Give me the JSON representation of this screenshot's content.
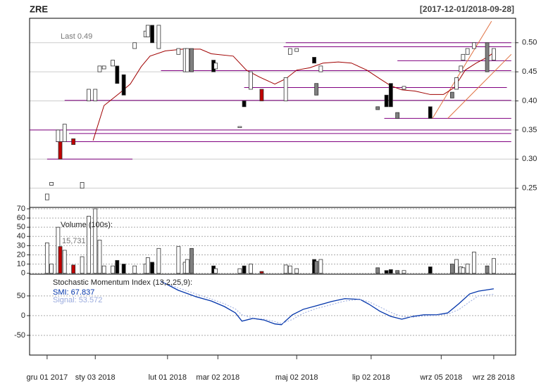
{
  "chart_data": [
    {
      "type": "candlestick",
      "title": "ZRE",
      "subtitle": "[2017-12-01/2018-09-28]",
      "annotation": "Last 0.49",
      "xlim": [
        -8,
        214
      ],
      "ylim": [
        0.217,
        0.542
      ],
      "yticks": [
        0.25,
        {
          "value": 0.3,
          "label": "0.30"
        },
        0.35,
        {
          "value": 0.4,
          "label": "0.40"
        },
        0.45,
        {
          "value": 0.5,
          "label": "0.50"
        }
      ],
      "x": [
        0,
        2,
        5,
        6,
        8,
        12,
        16,
        19,
        22,
        24,
        26,
        30,
        32,
        35,
        40,
        45,
        46,
        48,
        51,
        60,
        63,
        64,
        66,
        76,
        77,
        88,
        90,
        93,
        98,
        109,
        111,
        114,
        122,
        123,
        125,
        151,
        155,
        157,
        160,
        163,
        175,
        185,
        187,
        189,
        190,
        192,
        195,
        201,
        204
      ],
      "open": [
        0.23,
        0.255,
        0.33,
        0.33,
        0.33,
        0.335,
        0.25,
        0.4,
        0.4,
        0.45,
        0.455,
        0.46,
        0.46,
        0.445,
        0.49,
        0.51,
        0.51,
        0.53,
        0.49,
        0.48,
        0.45,
        0.45,
        0.49,
        0.47,
        0.455,
        0.354,
        0.4,
        0.42,
        0.42,
        0.4,
        0.48,
        0.485,
        0.475,
        0.43,
        0.45,
        0.39,
        0.41,
        0.43,
        0.38,
        0.42,
        0.39,
        0.405,
        0.42,
        0.45,
        0.47,
        0.48,
        0.49,
        0.5,
        0.47
      ],
      "close": [
        0.24,
        0.26,
        0.35,
        0.3,
        0.36,
        0.325,
        0.26,
        0.42,
        0.42,
        0.46,
        0.46,
        0.47,
        0.43,
        0.41,
        0.5,
        0.52,
        0.53,
        0.5,
        0.53,
        0.49,
        0.49,
        0.49,
        0.45,
        0.45,
        0.465,
        0.356,
        0.39,
        0.45,
        0.4,
        0.44,
        0.49,
        0.49,
        0.465,
        0.41,
        0.46,
        0.385,
        0.39,
        0.39,
        0.37,
        0.425,
        0.37,
        0.415,
        0.44,
        0.46,
        0.48,
        0.49,
        0.5,
        0.45,
        0.49
      ],
      "colors": [
        "#ffffff",
        "#ffffff",
        "#ffffff",
        "#c00000",
        "#ffffff",
        "#c00000",
        "#ffffff",
        "#ffffff",
        "#ffffff",
        "#ffffff",
        "#ffffff",
        "#ffffff",
        "#000000",
        "#000000",
        "#ffffff",
        "#ffffff",
        "#ffffff",
        "#000000",
        "#ffffff",
        "#ffffff",
        "#ffffff",
        "#ffffff",
        "#808080",
        "#000000",
        "#ffffff",
        "#ffffff",
        "#000000",
        "#ffffff",
        "#c00000",
        "#ffffff",
        "#ffffff",
        "#ffffff",
        "#000000",
        "#808080",
        "#ffffff",
        "#808080",
        "#000000",
        "#000000",
        "#808080",
        "#ffffff",
        "#000000",
        "#808080",
        "#ffffff",
        "#ffffff",
        "#ffffff",
        "#ffffff",
        "#ffffff",
        "#808080",
        "#ffffff"
      ],
      "sma": {
        "color": "#a00000",
        "x": [
          21,
          26,
          33,
          38,
          43,
          47,
          54,
          62,
          70,
          75,
          85,
          91,
          97,
          104,
          109,
          114,
          120,
          126,
          133,
          139,
          146,
          152,
          157,
          162,
          168,
          175,
          181,
          186,
          191,
          196,
          201,
          204
        ],
        "values": [
          0.332,
          0.392,
          0.413,
          0.429,
          0.459,
          0.477,
          0.486,
          0.489,
          0.489,
          0.481,
          0.477,
          0.453,
          0.441,
          0.429,
          0.438,
          0.453,
          0.457,
          0.465,
          0.467,
          0.465,
          0.453,
          0.438,
          0.426,
          0.419,
          0.417,
          0.411,
          0.411,
          0.423,
          0.453,
          0.465,
          0.475,
          0.483
        ]
      },
      "levels_color": "#800080",
      "levels": [
        {
          "value": 0.5,
          "x": [
            109,
            212
          ]
        },
        {
          "value": 0.493,
          "x": [
            108,
            212
          ]
        },
        {
          "value": 0.469,
          "x": [
            160,
            212
          ]
        },
        {
          "value": 0.452,
          "x": [
            52,
            212
          ]
        },
        {
          "value": 0.423,
          "x": [
            90,
            210
          ]
        },
        {
          "value": 0.401,
          "x": [
            8,
            212
          ]
        },
        {
          "value": 0.37,
          "x": [
            154,
            212
          ]
        },
        {
          "value": 0.35,
          "x": [
            -8,
            212
          ]
        },
        {
          "value": 0.344,
          "x": [
            10,
            212
          ]
        },
        {
          "value": 0.33,
          "x": [
            4,
            212
          ]
        },
        {
          "value": 0.3,
          "x": [
            0,
            39
          ]
        }
      ],
      "trend_color": "#e07040",
      "trendlines": [
        {
          "x": [
            176,
            203
          ],
          "values": [
            0.37,
            0.537
          ]
        },
        {
          "x": [
            183,
            212
          ],
          "values": [
            0.37,
            0.48
          ]
        }
      ]
    },
    {
      "type": "bar",
      "title": "Volume (100s):",
      "annotation": "15,731",
      "xlim": [
        -8,
        214
      ],
      "ylim": [
        -1,
        71.5
      ],
      "yticks": [
        0,
        10,
        20,
        30,
        40,
        50,
        60,
        70
      ],
      "x": [
        0,
        2,
        5,
        6,
        8,
        12,
        16,
        19,
        22,
        24,
        26,
        30,
        32,
        35,
        40,
        45,
        46,
        48,
        51,
        60,
        63,
        64,
        66,
        76,
        77,
        88,
        90,
        93,
        98,
        109,
        111,
        114,
        122,
        123,
        125,
        151,
        155,
        157,
        160,
        163,
        175,
        185,
        187,
        189,
        190,
        192,
        195,
        201,
        204
      ],
      "values": [
        33,
        10,
        50,
        29,
        25,
        9,
        18,
        62,
        70,
        36,
        8,
        8,
        14,
        10,
        8,
        10,
        17,
        12,
        27,
        29,
        12,
        15,
        27,
        8,
        5,
        5,
        8,
        10,
        2,
        9,
        8,
        5,
        15,
        13,
        15,
        6,
        3,
        4,
        3,
        3,
        7,
        10,
        15,
        7,
        6,
        10,
        23,
        8,
        16
      ]
    },
    {
      "type": "line",
      "title": "Stochastic Momentum Index (13,2,25,9):",
      "xlim": [
        -8,
        214
      ],
      "ylim": [
        -100,
        105
      ],
      "yticks": [
        -50,
        0,
        50
      ],
      "xticks": [
        {
          "value": 0,
          "label": "gru 01 2017"
        },
        {
          "value": 22,
          "label": "sty 03 2018"
        },
        {
          "value": 55,
          "label": "lut 01 2018"
        },
        {
          "value": 78,
          "label": "mar 02 2018"
        },
        {
          "value": 114,
          "label": "maj 02 2018"
        },
        {
          "value": 148,
          "label": "lip 02 2018"
        },
        {
          "value": 180,
          "label": "wrz 05 2018"
        },
        {
          "value": 204,
          "label": "wrz 28 2018"
        }
      ],
      "series": [
        {
          "name": "SMI: 67.837",
          "color": "#0033aa",
          "dash": false,
          "x": [
            52,
            60,
            68,
            75,
            81,
            86,
            89,
            94,
            99,
            104,
            107,
            112,
            117,
            123,
            130,
            136,
            143,
            147,
            152,
            157,
            162,
            167,
            172,
            178,
            183,
            188,
            193,
            197,
            204
          ],
          "values": [
            87,
            64,
            48,
            37,
            23,
            7,
            -14,
            -7,
            -11,
            -21,
            -23,
            2,
            16,
            25,
            36,
            43,
            41,
            29,
            11,
            -2,
            -9,
            -2,
            2,
            2,
            7,
            30,
            55,
            62,
            68
          ]
        },
        {
          "name": "Signal: 53.572",
          "color": "#99aadd",
          "dash": true,
          "x": [
            52,
            60,
            68,
            75,
            81,
            86,
            89,
            94,
            99,
            104,
            107,
            112,
            117,
            123,
            130,
            136,
            143,
            147,
            152,
            157,
            162,
            167,
            172,
            178,
            183,
            188,
            193,
            197,
            204
          ],
          "values": [
            85,
            70,
            55,
            42,
            30,
            17,
            2,
            -6,
            -9,
            -15,
            -20,
            -10,
            6,
            18,
            28,
            37,
            41,
            35,
            22,
            8,
            -2,
            -4,
            -1,
            1,
            4,
            15,
            35,
            50,
            54
          ]
        }
      ]
    }
  ]
}
